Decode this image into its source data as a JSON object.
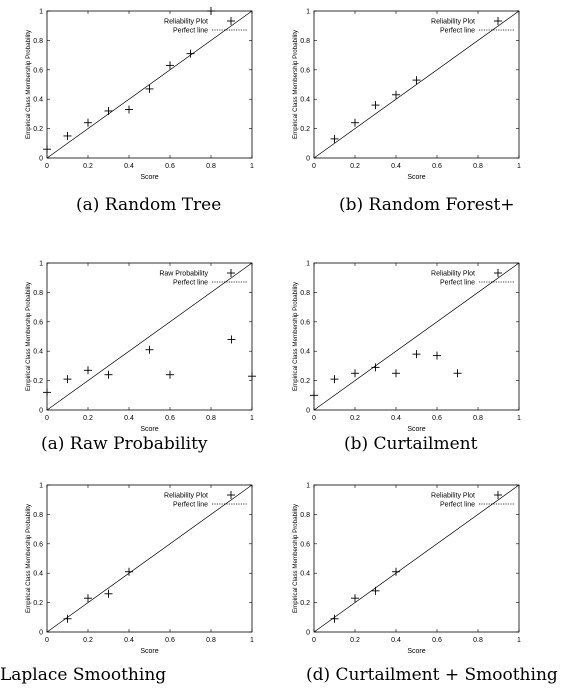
{
  "chart_data": [
    {
      "type": "scatter",
      "xlabel": "Score",
      "ylabel": "Empirical Class Membership Probability",
      "xlim": [
        0,
        1
      ],
      "ylim": [
        0,
        1
      ],
      "xticks": [
        "0",
        "0.2",
        "0.4",
        "0.6",
        "0.8",
        "1"
      ],
      "yticks": [
        "0",
        "0.2",
        "0.4",
        "0.6",
        "0.8",
        "1"
      ],
      "legend_position": "top-right",
      "series": [
        {
          "name": "Reliability Plot",
          "x": [
            0.0,
            0.1,
            0.2,
            0.3,
            0.4,
            0.5,
            0.6,
            0.7,
            0.8
          ],
          "y": [
            0.06,
            0.15,
            0.24,
            0.32,
            0.33,
            0.47,
            0.63,
            0.71,
            1.0
          ]
        },
        {
          "name": "Perfect line",
          "x": [
            0,
            1
          ],
          "y": [
            0,
            1
          ]
        }
      ]
    },
    {
      "type": "scatter",
      "xlabel": "Score",
      "ylabel": "Empirical Class Membership Probability",
      "xlim": [
        0,
        1
      ],
      "ylim": [
        0,
        1
      ],
      "xticks": [
        "0",
        "0.2",
        "0.4",
        "0.6",
        "0.8",
        "1"
      ],
      "yticks": [
        "0",
        "0.2",
        "0.4",
        "0.6",
        "0.8",
        "1"
      ],
      "legend_position": "top-right",
      "series": [
        {
          "name": "Reliability Plot",
          "x": [
            0.1,
            0.2,
            0.3,
            0.4,
            0.5
          ],
          "y": [
            0.13,
            0.24,
            0.36,
            0.43,
            0.53
          ]
        },
        {
          "name": "Perfect line",
          "x": [
            0,
            1
          ],
          "y": [
            0,
            1
          ]
        }
      ]
    },
    {
      "type": "scatter",
      "xlabel": "Score",
      "ylabel": "Empirical Class Membership Probability",
      "xlim": [
        0,
        1
      ],
      "ylim": [
        0,
        1
      ],
      "xticks": [
        "0",
        "0.2",
        "0.4",
        "0.6",
        "0.8",
        "1"
      ],
      "yticks": [
        "0",
        "0.2",
        "0.4",
        "0.6",
        "0.8",
        "1"
      ],
      "legend_position": "top-right",
      "series": [
        {
          "name": "Raw Probability",
          "x": [
            0.0,
            0.1,
            0.2,
            0.3,
            0.5,
            0.6,
            0.9,
            1.0
          ],
          "y": [
            0.12,
            0.21,
            0.27,
            0.24,
            0.41,
            0.24,
            0.48,
            0.23
          ]
        },
        {
          "name": "Perfect line",
          "x": [
            0,
            1
          ],
          "y": [
            0,
            1
          ]
        }
      ]
    },
    {
      "type": "scatter",
      "xlabel": "Score",
      "ylabel": "Empirical Class Membership Probability",
      "xlim": [
        0,
        1
      ],
      "ylim": [
        0,
        1
      ],
      "xticks": [
        "0",
        "0.2",
        "0.4",
        "0.6",
        "0.8",
        "1"
      ],
      "yticks": [
        "0",
        "0.2",
        "0.4",
        "0.6",
        "0.8",
        "1"
      ],
      "legend_position": "top-right",
      "series": [
        {
          "name": "Reliability Plot",
          "x": [
            0.0,
            0.1,
            0.2,
            0.3,
            0.4,
            0.5,
            0.6,
            0.7
          ],
          "y": [
            0.1,
            0.21,
            0.25,
            0.29,
            0.25,
            0.38,
            0.37,
            0.25
          ]
        },
        {
          "name": "Perfect line",
          "x": [
            0,
            1
          ],
          "y": [
            0,
            1
          ]
        }
      ]
    },
    {
      "type": "scatter",
      "xlabel": "Score",
      "ylabel": "Empirical Class Membership Probability",
      "xlim": [
        0,
        1
      ],
      "ylim": [
        0,
        1
      ],
      "xticks": [
        "0",
        "0.2",
        "0.4",
        "0.6",
        "0.8",
        "1"
      ],
      "yticks": [
        "0",
        "0.2",
        "0.4",
        "0.6",
        "0.8",
        "1"
      ],
      "legend_position": "top-right",
      "series": [
        {
          "name": "Reliability Plot",
          "x": [
            0.1,
            0.2,
            0.3,
            0.4
          ],
          "y": [
            0.09,
            0.23,
            0.26,
            0.41
          ]
        },
        {
          "name": "Perfect line",
          "x": [
            0,
            1
          ],
          "y": [
            0,
            1
          ]
        }
      ]
    },
    {
      "type": "scatter",
      "xlabel": "Score",
      "ylabel": "Empirical Class Membership Probability",
      "xlim": [
        0,
        1
      ],
      "ylim": [
        0,
        1
      ],
      "xticks": [
        "0",
        "0.2",
        "0.4",
        "0.6",
        "0.8",
        "1"
      ],
      "yticks": [
        "0",
        "0.2",
        "0.4",
        "0.6",
        "0.8",
        "1"
      ],
      "legend_position": "top-right",
      "series": [
        {
          "name": "Reliability Plot",
          "x": [
            0.1,
            0.2,
            0.3,
            0.4
          ],
          "y": [
            0.09,
            0.23,
            0.28,
            0.41
          ]
        },
        {
          "name": "Perfect line",
          "x": [
            0,
            1
          ],
          "y": [
            0,
            1
          ]
        }
      ]
    }
  ],
  "captions": [
    "(a) Random Tree",
    "(b) Random Forest+",
    "(a) Raw Probability",
    "(b) Curtailment",
    "Laplace Smoothing",
    "(d) Curtailment + Smoothing"
  ]
}
